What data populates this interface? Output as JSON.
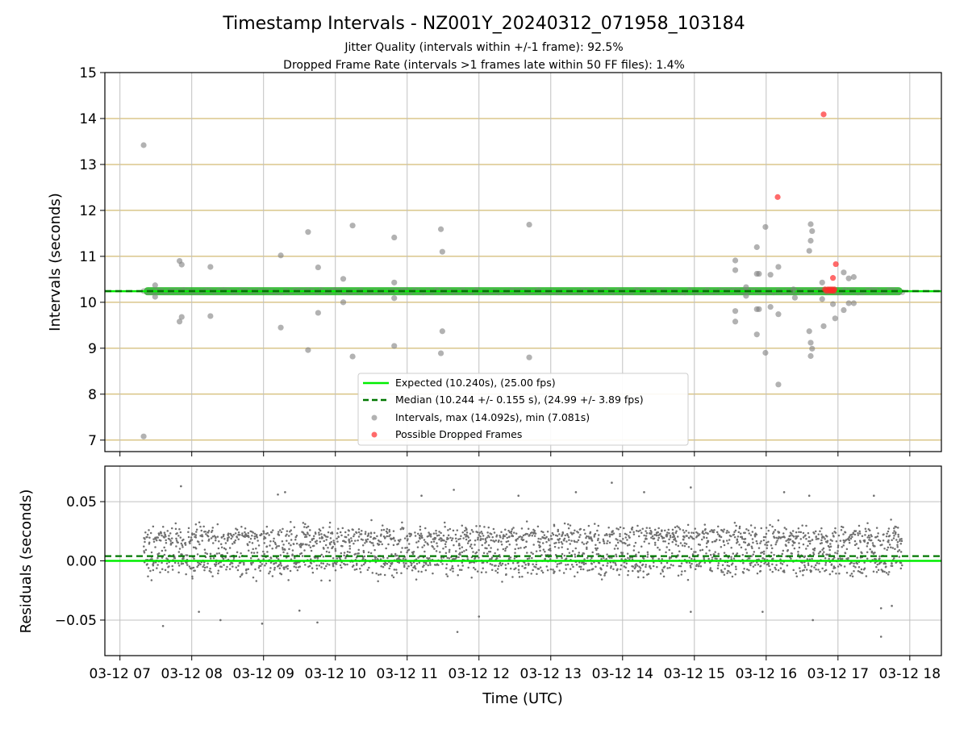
{
  "figure": {
    "title": "Timestamp Intervals - NZ001Y_20240312_071958_103184",
    "subtitle_line1": "Jitter Quality (intervals within +/-1 frame): 92.5%",
    "subtitle_line2": "Dropped Frame Rate (intervals >1 frames late within 50 FF files): 1.4%"
  },
  "chart_data": [
    {
      "type": "scatter",
      "panel": "top",
      "ylabel": "Intervals (seconds)",
      "ylim": [
        6.75,
        15.0
      ],
      "xlim_hours": [
        6.79,
        18.44
      ],
      "grid": "on",
      "y_ticks": [
        "7",
        "8",
        "9",
        "10",
        "11",
        "12",
        "13",
        "14",
        "15"
      ],
      "legend_placement": "lower-center",
      "legend": {
        "expected": "Expected (10.240s), (25.00 fps)",
        "median": "Median (10.244 +/- 0.155 s), (24.99 +/- 3.89 fps)",
        "intervals": "Intervals, max (14.092s), min (7.081s)",
        "dropped": "Possible Dropped Frames"
      },
      "expected_value": 10.24,
      "median_value": 10.244,
      "band_value": 10.24,
      "band_x_range": [
        7.33,
        17.9
      ],
      "colors": {
        "expected": "#00ee00",
        "median": "#007700",
        "band": "#1db51d",
        "interval": "#7f7f7f",
        "dropped": "#ff2b2b",
        "hgrid": "#c8aa50",
        "vgrid": "#c0c0c0"
      },
      "interval_outliers": [
        {
          "t": 7.33,
          "v": 13.42
        },
        {
          "t": 7.33,
          "v": 7.08
        },
        {
          "t": 7.49,
          "v": 10.37
        },
        {
          "t": 7.49,
          "v": 10.12
        },
        {
          "t": 7.83,
          "v": 10.9
        },
        {
          "t": 7.86,
          "v": 10.82
        },
        {
          "t": 7.83,
          "v": 9.58
        },
        {
          "t": 7.86,
          "v": 9.68
        },
        {
          "t": 8.26,
          "v": 10.77
        },
        {
          "t": 8.26,
          "v": 9.7
        },
        {
          "t": 9.24,
          "v": 11.02
        },
        {
          "t": 9.24,
          "v": 9.45
        },
        {
          "t": 9.62,
          "v": 11.53
        },
        {
          "t": 9.62,
          "v": 8.96
        },
        {
          "t": 9.76,
          "v": 10.76
        },
        {
          "t": 9.76,
          "v": 9.77
        },
        {
          "t": 10.11,
          "v": 10.51
        },
        {
          "t": 10.11,
          "v": 10.0
        },
        {
          "t": 10.24,
          "v": 11.67
        },
        {
          "t": 10.24,
          "v": 8.82
        },
        {
          "t": 10.82,
          "v": 11.41
        },
        {
          "t": 10.82,
          "v": 10.43
        },
        {
          "t": 10.82,
          "v": 10.09
        },
        {
          "t": 10.82,
          "v": 9.05
        },
        {
          "t": 11.47,
          "v": 11.59
        },
        {
          "t": 11.49,
          "v": 11.1
        },
        {
          "t": 11.49,
          "v": 9.37
        },
        {
          "t": 11.47,
          "v": 8.89
        },
        {
          "t": 12.7,
          "v": 11.69
        },
        {
          "t": 12.7,
          "v": 8.8
        },
        {
          "t": 15.57,
          "v": 10.91
        },
        {
          "t": 15.57,
          "v": 10.7
        },
        {
          "t": 15.57,
          "v": 9.81
        },
        {
          "t": 15.57,
          "v": 9.58
        },
        {
          "t": 15.72,
          "v": 10.33
        },
        {
          "t": 15.72,
          "v": 10.14
        },
        {
          "t": 15.87,
          "v": 11.2
        },
        {
          "t": 15.87,
          "v": 10.62
        },
        {
          "t": 15.9,
          "v": 10.62
        },
        {
          "t": 15.87,
          "v": 9.85
        },
        {
          "t": 15.9,
          "v": 9.85
        },
        {
          "t": 15.87,
          "v": 9.3
        },
        {
          "t": 15.99,
          "v": 11.64
        },
        {
          "t": 15.99,
          "v": 8.9
        },
        {
          "t": 16.06,
          "v": 10.6
        },
        {
          "t": 16.06,
          "v": 9.9
        },
        {
          "t": 16.17,
          "v": 10.77
        },
        {
          "t": 16.17,
          "v": 9.74
        },
        {
          "t": 16.17,
          "v": 8.21
        },
        {
          "t": 16.38,
          "v": 10.28
        },
        {
          "t": 16.4,
          "v": 10.1
        },
        {
          "t": 16.6,
          "v": 11.12
        },
        {
          "t": 16.62,
          "v": 11.7
        },
        {
          "t": 16.62,
          "v": 11.34
        },
        {
          "t": 16.64,
          "v": 11.55
        },
        {
          "t": 16.6,
          "v": 9.37
        },
        {
          "t": 16.62,
          "v": 9.12
        },
        {
          "t": 16.64,
          "v": 8.99
        },
        {
          "t": 16.62,
          "v": 8.83
        },
        {
          "t": 16.78,
          "v": 10.43
        },
        {
          "t": 16.78,
          "v": 10.07
        },
        {
          "t": 16.8,
          "v": 9.48
        },
        {
          "t": 16.93,
          "v": 9.96
        },
        {
          "t": 16.96,
          "v": 9.65
        },
        {
          "t": 17.08,
          "v": 10.65
        },
        {
          "t": 17.08,
          "v": 9.83
        },
        {
          "t": 17.15,
          "v": 10.52
        },
        {
          "t": 17.22,
          "v": 10.55
        },
        {
          "t": 17.15,
          "v": 9.98
        },
        {
          "t": 17.22,
          "v": 9.98
        }
      ],
      "dropped_frames": [
        {
          "t": 16.8,
          "v": 14.09
        },
        {
          "t": 16.16,
          "v": 12.29
        },
        {
          "t": 16.97,
          "v": 10.83
        },
        {
          "t": 16.93,
          "v": 10.53
        },
        {
          "t": 16.82,
          "v": 10.28
        },
        {
          "t": 16.86,
          "v": 10.28
        },
        {
          "t": 16.89,
          "v": 10.28
        },
        {
          "t": 16.92,
          "v": 10.28
        },
        {
          "t": 16.95,
          "v": 10.28
        },
        {
          "t": 16.84,
          "v": 10.25
        },
        {
          "t": 16.88,
          "v": 10.25
        },
        {
          "t": 16.91,
          "v": 10.25
        },
        {
          "t": 16.94,
          "v": 10.25
        }
      ]
    },
    {
      "type": "scatter",
      "panel": "bottom",
      "xlabel": "Time (UTC)",
      "ylabel": "Residuals (seconds)",
      "ylim": [
        -0.08,
        0.08
      ],
      "xlim_hours": [
        6.79,
        18.44
      ],
      "grid": "on",
      "y_ticks": [
        {
          "value": 0.05,
          "label": "0.05"
        },
        {
          "value": 0.0,
          "label": "0.00"
        },
        {
          "value": -0.05,
          "label": "−0.05"
        }
      ],
      "x_ticks": [
        {
          "hour": 7,
          "label": "03-12 07"
        },
        {
          "hour": 8,
          "label": "03-12 08"
        },
        {
          "hour": 9,
          "label": "03-12 09"
        },
        {
          "hour": 10,
          "label": "03-12 10"
        },
        {
          "hour": 11,
          "label": "03-12 11"
        },
        {
          "hour": 12,
          "label": "03-12 12"
        },
        {
          "hour": 13,
          "label": "03-12 13"
        },
        {
          "hour": 14,
          "label": "03-12 14"
        },
        {
          "hour": 15,
          "label": "03-12 15"
        },
        {
          "hour": 16,
          "label": "03-12 16"
        },
        {
          "hour": 17,
          "label": "03-12 17"
        },
        {
          "hour": 18,
          "label": "03-12 18"
        }
      ],
      "expected_residual": 0.0,
      "median_residual": 0.004,
      "residual_range_hours": [
        7.33,
        17.9
      ],
      "residual_outliers": [
        {
          "t": 7.6,
          "v": -0.055
        },
        {
          "t": 7.85,
          "v": 0.063
        },
        {
          "t": 8.1,
          "v": -0.043
        },
        {
          "t": 8.4,
          "v": -0.05
        },
        {
          "t": 8.98,
          "v": -0.053
        },
        {
          "t": 9.2,
          "v": 0.056
        },
        {
          "t": 9.3,
          "v": 0.058
        },
        {
          "t": 9.5,
          "v": -0.042
        },
        {
          "t": 9.75,
          "v": -0.052
        },
        {
          "t": 11.2,
          "v": 0.055
        },
        {
          "t": 11.65,
          "v": 0.06
        },
        {
          "t": 11.7,
          "v": -0.06
        },
        {
          "t": 12.0,
          "v": -0.047
        },
        {
          "t": 12.55,
          "v": 0.055
        },
        {
          "t": 13.35,
          "v": 0.058
        },
        {
          "t": 13.85,
          "v": 0.066
        },
        {
          "t": 14.3,
          "v": 0.058
        },
        {
          "t": 14.95,
          "v": 0.062
        },
        {
          "t": 14.95,
          "v": -0.043
        },
        {
          "t": 15.95,
          "v": -0.043
        },
        {
          "t": 16.25,
          "v": 0.058
        },
        {
          "t": 16.6,
          "v": 0.055
        },
        {
          "t": 16.65,
          "v": -0.05
        },
        {
          "t": 17.5,
          "v": 0.055
        },
        {
          "t": 17.6,
          "v": -0.064
        },
        {
          "t": 17.6,
          "v": -0.04
        },
        {
          "t": 17.75,
          "v": -0.038
        }
      ]
    }
  ]
}
